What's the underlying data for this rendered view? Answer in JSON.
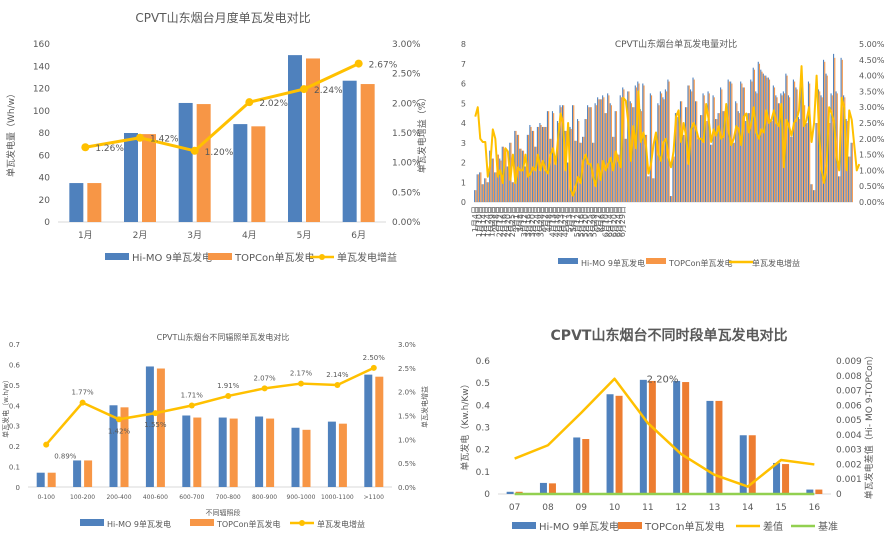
{
  "colors": {
    "blue": "#4F81BD",
    "orange": "#F79646",
    "gold": "#FFC000",
    "green": "#92D050",
    "axis": "#D9D9D9",
    "text": "#595959"
  },
  "chart_data": [
    {
      "id": "monthly",
      "type": "bar",
      "title": "CPVT山东烟台月度单瓦发电对比",
      "ylabel": "单瓦发电量（Wh/w）",
      "y2label": "单瓦发电增益（%）",
      "ylim": [
        0,
        160
      ],
      "yticks": [
        "0",
        "20",
        "40",
        "60",
        "80",
        "100",
        "120",
        "140",
        "160"
      ],
      "y2lim": [
        0,
        3
      ],
      "y2ticks": [
        "0.00%",
        "0.50%",
        "1.00%",
        "1.50%",
        "2.00%",
        "2.50%",
        "3.00%"
      ],
      "categories": [
        "1月",
        "2月",
        "3月",
        "4月",
        "5月",
        "6月"
      ],
      "series": [
        {
          "name": "Hi-MO 9单瓦发电",
          "kind": "bar",
          "color": "#4F81BD",
          "values": [
            35,
            80,
            107,
            88,
            150,
            127
          ]
        },
        {
          "name": "TOPCon单瓦发电",
          "kind": "bar",
          "color": "#F79646",
          "values": [
            35,
            79,
            106,
            86,
            147,
            124
          ]
        },
        {
          "name": "单瓦发电增益",
          "kind": "line",
          "axis": "y2",
          "color": "#FFC000",
          "values": [
            1.26,
            1.42,
            1.2,
            2.02,
            2.24,
            2.67
          ],
          "labels": [
            "1.26%",
            "1.42%",
            "1.20%",
            "2.02%",
            "2.24%",
            "2.67%"
          ]
        }
      ],
      "legend": "bottom"
    },
    {
      "id": "daily",
      "type": "bar",
      "title": "CPVT山东烟台单瓦发电量对比",
      "ylim": [
        0,
        8
      ],
      "yticks": [
        "0",
        "1",
        "2",
        "3",
        "4",
        "5",
        "6",
        "7",
        "8"
      ],
      "y2lim": [
        0,
        5
      ],
      "y2ticks": [
        "0.00%",
        "0.50%",
        "1.00%",
        "1.50%",
        "2.00%",
        "2.50%",
        "3.00%",
        "3.50%",
        "4.00%",
        "4.50%",
        "5.00%"
      ],
      "xtick_labels": [
        "1月4日",
        "1月10日",
        "1月14日",
        "1月24日",
        "1月29日",
        "2月8日",
        "2月12日",
        "2月16日",
        "2月20日",
        "2月25日",
        "3月1日",
        "3月8日",
        "3月12日",
        "3月16日",
        "3月20日",
        "3月24日",
        "3月28日",
        "4月2日",
        "4月8日",
        "4月13日",
        "4月18日",
        "4月23日",
        "4月27日",
        "5月3日",
        "5月7日",
        "5月12日",
        "5月16日",
        "5月20日",
        "5月25日",
        "5月29日",
        "6月2日",
        "6月6日",
        "6月10日",
        "6月14日",
        "6月20日",
        "6月24日",
        "6月29日"
      ],
      "series": [
        {
          "name": "Hi-MO 9单瓦发电",
          "kind": "bar",
          "color": "#4F81BD",
          "values": [
            0.6,
            1.4,
            1.5,
            0.9,
            1.2,
            1.0,
            2.6,
            2.2,
            1.5,
            2.4,
            2.2,
            2.8,
            2.7,
            1.8,
            3.0,
            1.0,
            3.6,
            3.4,
            2.7,
            2.6,
            1.8,
            3.4,
            3.9,
            3.6,
            2.8,
            3.8,
            4.0,
            3.8,
            3.8,
            4.6,
            3.2,
            4.6,
            2.3,
            4.1,
            4.9,
            4.9,
            3.6,
            2.0,
            3.8,
            4.9,
            3.1,
            4.2,
            3.0,
            3.3,
            4.2,
            4.9,
            4.8,
            3.0,
            5.0,
            5.3,
            5.2,
            5.4,
            4.5,
            5.5,
            5.0,
            3.3,
            4.6,
            2.4,
            5.4,
            5.8,
            3.2,
            5.6,
            5.1,
            4.8,
            5.9,
            6.1,
            4.7,
            6.0,
            3.4,
            1.3,
            5.5,
            1.2,
            3.3,
            5.0,
            5.6,
            5.3,
            5.7,
            6.2,
            0.3,
            2.3,
            4.5,
            4.3,
            5.1,
            3.4,
            4.8,
            5.9,
            5.7,
            6.3,
            5.1,
            3.2,
            4.4,
            5.5,
            4.1,
            5.6,
            2.9,
            5.4,
            4.2,
            4.5,
            5.8,
            4.6,
            4.4,
            6.2,
            6.1,
            3.0,
            5.1,
            4.6,
            6.1,
            5.8,
            4.1,
            4.5,
            6.2,
            6.8,
            5.6,
            7.1,
            6.7,
            6.5,
            6.4,
            6.3,
            4.2,
            5.9,
            5.4,
            5.0,
            5.5,
            5.6,
            6.5,
            5.4,
            3.3,
            6.2,
            5.8,
            4.3,
            6.0,
            5.0,
            4.0,
            6.1,
            0.9,
            0.6,
            4.0,
            5.7,
            5.4,
            7.2,
            6.5,
            4.0,
            5.5,
            7.5,
            5.6,
            1.3,
            7.3,
            5.4,
            4.2,
            2.3,
            3.0
          ]
        },
        {
          "name": "TOPCon单瓦发电",
          "kind": "bar",
          "color": "#F79646",
          "values": [
            0.6,
            1.4,
            1.5,
            0.9,
            1.2,
            1.0,
            2.6,
            2.2,
            1.5,
            2.4,
            2.1,
            2.8,
            2.7,
            1.8,
            3.0,
            1.0,
            3.6,
            3.4,
            2.7,
            2.6,
            1.8,
            3.4,
            3.8,
            3.6,
            2.8,
            3.8,
            3.9,
            3.8,
            3.8,
            4.6,
            3.2,
            4.5,
            2.3,
            4.0,
            4.8,
            4.9,
            3.6,
            2.0,
            3.7,
            4.9,
            3.1,
            4.1,
            3.0,
            3.3,
            4.2,
            4.8,
            4.8,
            3.0,
            4.9,
            5.2,
            5.2,
            5.3,
            4.5,
            5.4,
            4.9,
            3.3,
            4.6,
            2.4,
            5.3,
            5.7,
            3.2,
            5.6,
            5.0,
            4.8,
            5.8,
            6.0,
            4.6,
            5.9,
            3.4,
            1.3,
            5.4,
            1.2,
            3.3,
            4.9,
            5.5,
            5.2,
            5.6,
            6.1,
            0.3,
            2.3,
            4.5,
            4.3,
            5.1,
            3.4,
            4.8,
            5.9,
            5.6,
            6.2,
            5.1,
            3.2,
            4.4,
            5.4,
            4.1,
            5.5,
            2.9,
            5.3,
            4.2,
            4.5,
            5.7,
            4.6,
            4.4,
            6.1,
            6.0,
            3.0,
            5.0,
            4.5,
            6.0,
            5.8,
            4.1,
            4.5,
            6.1,
            6.7,
            5.5,
            7.0,
            6.6,
            6.4,
            6.3,
            6.2,
            4.1,
            5.8,
            5.3,
            5.0,
            5.4,
            5.5,
            6.4,
            5.3,
            3.3,
            6.1,
            5.7,
            4.2,
            5.9,
            4.9,
            4.0,
            6.0,
            0.9,
            0.6,
            4.0,
            5.6,
            5.3,
            7.1,
            6.4,
            4.0,
            5.4,
            7.3,
            5.5,
            1.3,
            7.2,
            5.3,
            4.1,
            2.3,
            3.0
          ]
        },
        {
          "name": "单瓦发电增益",
          "kind": "line",
          "axis": "y2",
          "color": "#FFC000",
          "values": [
            2.7,
            3.0,
            2.0,
            1.9,
            1.9,
            0.8,
            1.2,
            2.3,
            2.0,
            0.8,
            1.0,
            0.6,
            1.7,
            1.6,
            0.7,
            1.5,
            0.6,
            1.1,
            1.0,
            1.0,
            1.5,
            0.8,
            0.9,
            1.1,
            1.0,
            1.5,
            1.0,
            1.3,
            1.0,
            0.9,
            1.5,
            1.7,
            1.2,
            2.0,
            2.8,
            2.5,
            1.0,
            2.5,
            0.4,
            0.2,
            0.5,
            0.8,
            0.6,
            1.3,
            1.5,
            1.2,
            1.2,
            0.8,
            0.5,
            1.2,
            0.7,
            1.3,
            1.0,
            1.2,
            1.4,
            1.0,
            1.6,
            1.3,
            1.1,
            3.3,
            3.2,
            2.5,
            1.3,
            2.4,
            1.7,
            3.5,
            1.9,
            2.2,
            1.8,
            0.9,
            1.2,
            1.8,
            2.2,
            1.5,
            1.3,
            1.9,
            2.0,
            1.4,
            1.1,
            1.6,
            2.7,
            2.9,
            1.9,
            2.5,
            2.1,
            1.2,
            2.3,
            2.5,
            2.3,
            2.0,
            2.0,
            1.9,
            3.1,
            2.6,
            1.9,
            2.3,
            2.1,
            2.4,
            2.0,
            2.1,
            3.1,
            2.2,
            1.8,
            2.0,
            2.4,
            2.3,
            1.8,
            2.7,
            2.8,
            2.2,
            2.5,
            3.0,
            2.2,
            2.0,
            2.3,
            2.2,
            2.9,
            2.5,
            2.6,
            2.9,
            2.5,
            2.4,
            3.1,
            1.1,
            2.6,
            2.4,
            2.1,
            2.5,
            2.6,
            2.9,
            4.3,
            2.4,
            2.6,
            3.0,
            1.9,
            2.5,
            4.0,
            2.2,
            1.0,
            0.6,
            1.2,
            3.0,
            2.8,
            2.5,
            1.4,
            1.0,
            3.3,
            3.0,
            1.0,
            2.9,
            2.6,
            1.8,
            1.0,
            1.2
          ]
        }
      ],
      "legend": "bottom"
    },
    {
      "id": "irradiance",
      "type": "bar",
      "title": "CPVT山东烟台不同辐照单瓦发电对比",
      "xlabel": "不同辐照段",
      "ylabel": "单瓦发电（w.h/w）",
      "y2label": "单瓦发电增益",
      "ylim": [
        0,
        0.7
      ],
      "yticks": [
        "0",
        "0.1",
        "0.2",
        "0.3",
        "0.4",
        "0.5",
        "0.6",
        "0.7"
      ],
      "y2lim": [
        0,
        3
      ],
      "y2ticks": [
        "0.0%",
        "0.5%",
        "1.0%",
        "1.5%",
        "2.0%",
        "2.5%",
        "3.0%"
      ],
      "categories": [
        "0-100",
        "100-200",
        "200-400",
        "400-600",
        "600-700",
        "700-800",
        "800-900",
        "900-1000",
        "1000-1100",
        ">1100"
      ],
      "series": [
        {
          "name": "Hi-MO 9单瓦发电",
          "kind": "bar",
          "color": "#4F81BD",
          "values": [
            0.07,
            0.13,
            0.4,
            0.59,
            0.35,
            0.34,
            0.345,
            0.29,
            0.32,
            0.55
          ]
        },
        {
          "name": "TOPCon单瓦发电",
          "kind": "bar",
          "color": "#F79646",
          "values": [
            0.07,
            0.13,
            0.39,
            0.58,
            0.34,
            0.335,
            0.335,
            0.28,
            0.31,
            0.54
          ]
        },
        {
          "name": "单瓦发电增益",
          "kind": "line",
          "axis": "y2",
          "color": "#FFC000",
          "values": [
            0.89,
            1.77,
            1.42,
            1.55,
            1.71,
            1.91,
            2.07,
            2.17,
            2.14,
            2.5
          ],
          "labels": [
            "0.89%",
            "1.77%",
            "1.42%",
            "1.55%",
            "1.71%",
            "1.91%",
            "2.07%",
            "2.17%",
            "2.14%",
            "2.50%"
          ]
        }
      ],
      "legend": "bottom"
    },
    {
      "id": "hourly",
      "type": "bar",
      "title": "CPVT山东烟台不同时段单瓦发电对比",
      "ylabel": "单瓦发电（Kw.h/Kw）",
      "y2label": "单瓦发电差值（Hi- MO 9-TOPCon）",
      "ylim": [
        0,
        0.6
      ],
      "yticks": [
        "0",
        "0.1",
        "0.2",
        "0.3",
        "0.4",
        "0.5",
        "0.6"
      ],
      "y2lim": [
        0,
        0.009
      ],
      "y2ticks": [
        "0",
        "0.001",
        "0.002",
        "0.003",
        "0.004",
        "0.005",
        "0.006",
        "0.007",
        "0.008",
        "0.009"
      ],
      "categories": [
        "07",
        "08",
        "09",
        "10",
        "11",
        "12",
        "13",
        "14",
        "15",
        "16"
      ],
      "annotation": "2.20%",
      "series": [
        {
          "name": "Hi-MO 9单瓦发电",
          "kind": "bar",
          "color": "#4F81BD",
          "values": [
            0.01,
            0.05,
            0.255,
            0.45,
            0.515,
            0.51,
            0.42,
            0.265,
            0.14,
            0.02
          ]
        },
        {
          "name": "TOPCon单瓦发电",
          "kind": "bar",
          "color": "#ED7D31",
          "values": [
            0.01,
            0.048,
            0.248,
            0.443,
            0.51,
            0.505,
            0.42,
            0.265,
            0.135,
            0.02
          ]
        },
        {
          "name": "差值",
          "kind": "line",
          "axis": "y2",
          "color": "#FFC000",
          "values": [
            0.0024,
            0.0033,
            0.0055,
            0.0078,
            0.0048,
            0.0027,
            0.0013,
            0.0005,
            0.0023,
            0.002
          ]
        },
        {
          "name": "基准",
          "kind": "line",
          "axis": "y2",
          "color": "#92D050",
          "values": [
            0,
            0,
            0,
            0,
            0,
            0,
            0,
            0,
            0,
            0
          ]
        }
      ],
      "legend": "bottom"
    }
  ]
}
